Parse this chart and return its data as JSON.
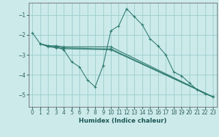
{
  "xlabel": "Humidex (Indice chaleur)",
  "ylabel": "",
  "background_color": "#cceaea",
  "grid_color": "#99cccc",
  "line_color": "#2d7a6e",
  "xlim": [
    -0.5,
    23.5
  ],
  "ylim": [
    -5.6,
    -0.4
  ],
  "yticks": [
    -5,
    -4,
    -3,
    -2,
    -1
  ],
  "xticks": [
    0,
    1,
    2,
    3,
    4,
    5,
    6,
    7,
    8,
    9,
    10,
    11,
    12,
    13,
    14,
    15,
    16,
    17,
    18,
    19,
    20,
    21,
    22,
    23
  ],
  "lines": [
    {
      "x": [
        0,
        1,
        2,
        3,
        4,
        5,
        6,
        7,
        8,
        9,
        10,
        11,
        12,
        13,
        14,
        15,
        16,
        17,
        18,
        19,
        20,
        21,
        22,
        23
      ],
      "y": [
        -1.9,
        -2.45,
        -2.55,
        -2.6,
        -2.75,
        -3.35,
        -3.6,
        -4.25,
        -4.6,
        -3.55,
        -1.8,
        -1.55,
        -0.7,
        -1.1,
        -1.5,
        -2.2,
        -2.55,
        -3.0,
        -3.85,
        -4.05,
        -4.4,
        -4.75,
        -4.95,
        -5.1
      ]
    },
    {
      "x": [
        1,
        2,
        3,
        4,
        10,
        23
      ],
      "y": [
        -2.45,
        -2.55,
        -2.55,
        -2.6,
        -2.6,
        -5.1
      ]
    },
    {
      "x": [
        1,
        2,
        3,
        4,
        10,
        23
      ],
      "y": [
        -2.45,
        -2.55,
        -2.6,
        -2.65,
        -2.7,
        -5.1
      ]
    },
    {
      "x": [
        1,
        2,
        3,
        4,
        10,
        23
      ],
      "y": [
        -2.45,
        -2.6,
        -2.65,
        -2.7,
        -2.75,
        -5.1
      ]
    }
  ]
}
